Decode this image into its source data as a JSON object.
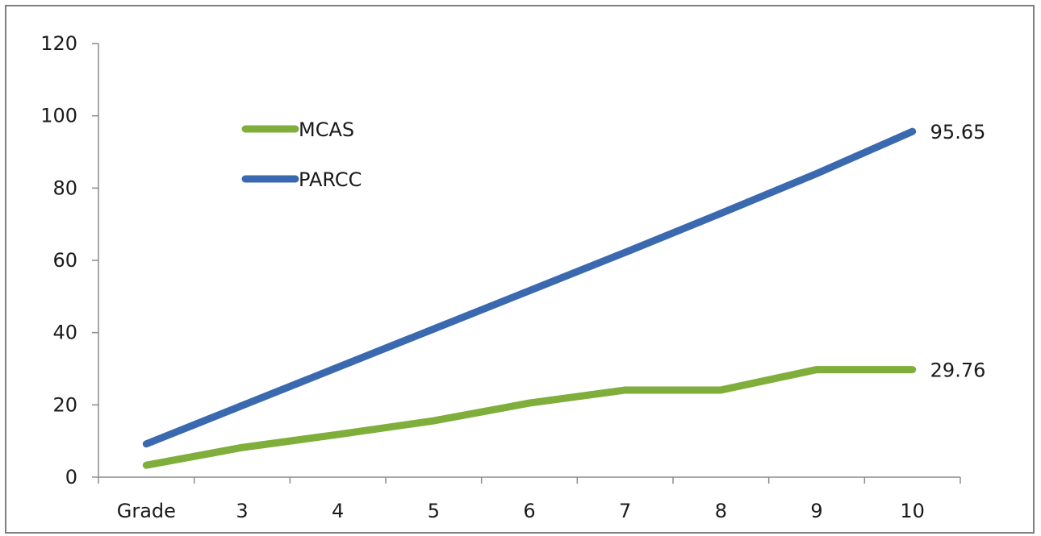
{
  "chart_data": {
    "type": "line",
    "title": "",
    "xlabel": "",
    "ylabel": "",
    "categories": [
      "Grade",
      "3",
      "4",
      "5",
      "6",
      "7",
      "8",
      "9",
      "10"
    ],
    "ylim": [
      0,
      120
    ],
    "yticks": [
      0,
      20,
      40,
      60,
      80,
      100,
      120
    ],
    "grid": false,
    "legend": "upper-left inside plot",
    "series": [
      {
        "name": "MCAS",
        "color": "#7fae3b",
        "values": [
          3.3,
          8.2,
          11.8,
          15.6,
          20.5,
          24.1,
          24.1,
          29.76,
          29.76
        ],
        "end_label": "29.76"
      },
      {
        "name": "PARCC",
        "color": "#3a69b0",
        "values": [
          9.2,
          19.8,
          30.4,
          41.0,
          51.6,
          62.2,
          73.0,
          84.0,
          95.65
        ],
        "end_label": "95.65"
      }
    ]
  }
}
